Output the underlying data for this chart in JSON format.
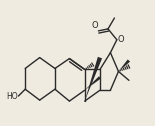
{
  "bg_color": "#f0ebe0",
  "line_color": "#2a2a2a",
  "lw": 1.0,
  "figsize": [
    1.55,
    1.26
  ],
  "dpi": 100,
  "HO_label": "HO",
  "O_label": "O",
  "fontsize": 5.5
}
